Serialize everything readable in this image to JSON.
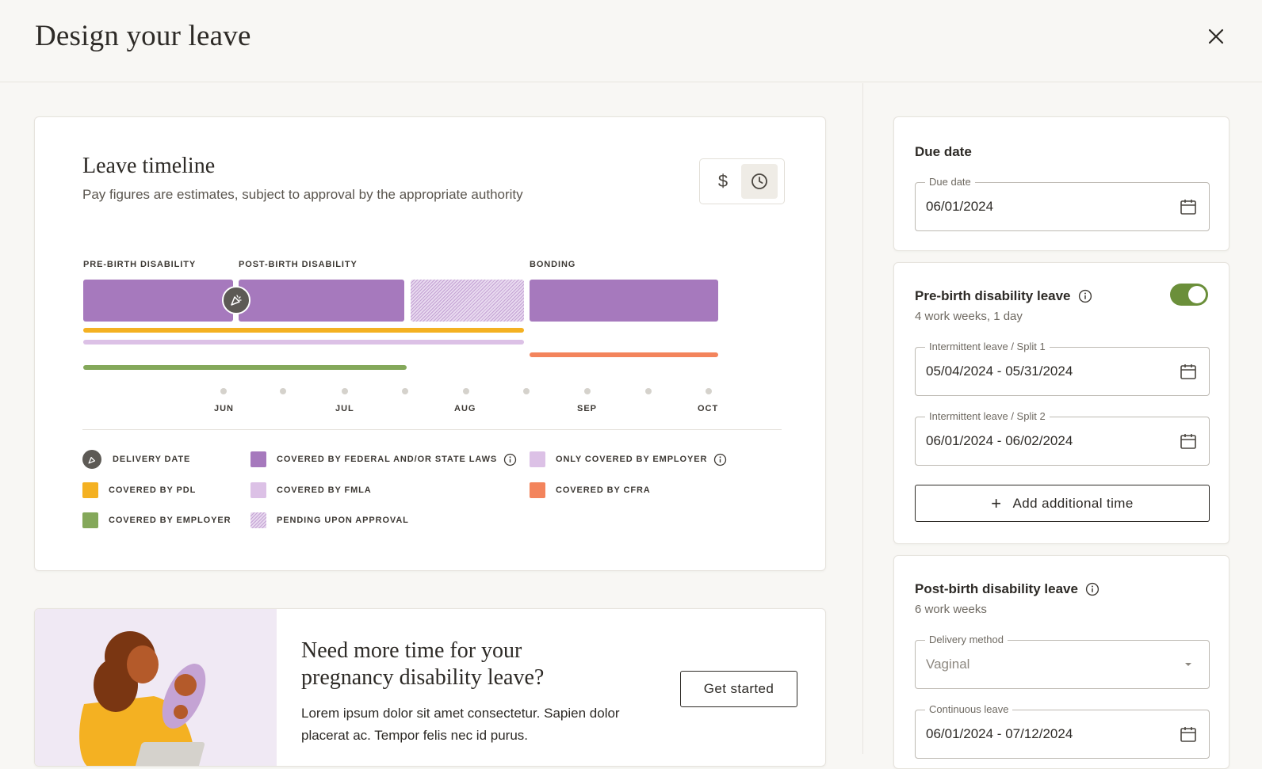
{
  "header": {
    "title": "Design your leave",
    "close_icon": "close-icon"
  },
  "timeline": {
    "title": "Leave timeline",
    "subtitle": "Pay figures are estimates, subject to approval by the appropriate authority",
    "view_toggle": {
      "pay_symbol": "$",
      "time_icon": "clock-icon",
      "active": "time"
    },
    "phases": [
      {
        "label": "PRE-BIRTH DISABILITY"
      },
      {
        "label": "POST-BIRTH DISABILITY"
      },
      {
        "label": "BONDING"
      }
    ],
    "months": [
      "JUN",
      "JUL",
      "AUG",
      "SEP",
      "OCT"
    ],
    "legend": [
      {
        "label": "DELIVERY DATE",
        "icon": "delivery-icon"
      },
      {
        "label": "COVERED BY FEDERAL AND/OR STATE LAWS",
        "color": "#a679bd",
        "info": true
      },
      {
        "label": "ONLY COVERED BY EMPLOYER",
        "color": "#dcc1e6",
        "info": true
      },
      {
        "label": "COVERED BY PDL",
        "color": "#f4b122"
      },
      {
        "label": "COVERED BY FMLA",
        "color": "#dcc1e6"
      },
      {
        "label": "COVERED BY CFRA",
        "color": "#f3845c"
      },
      {
        "label": "COVERED BY EMPLOYER",
        "color": "#84a85a"
      },
      {
        "label": "PENDING UPON APPROVAL",
        "pattern": "hatched"
      }
    ],
    "colors": {
      "federal": "#a679bd",
      "pdl": "#f4b122",
      "fmla": "#dcc1e6",
      "cfra": "#f3845c",
      "employer": "#84a85a"
    }
  },
  "promo": {
    "title": "Need more time for your pregnancy disability leave?",
    "text": "Lorem ipsum dolor sit amet consectetur. Sapien dolor placerat ac. Tempor felis nec id purus.",
    "button_label": "Get started"
  },
  "due_date": {
    "title": "Due date",
    "field_label": "Due date",
    "value": "06/01/2024"
  },
  "pre_birth": {
    "title": "Pre-birth disability leave",
    "duration": "4 work weeks, 1 day",
    "enabled": true,
    "splits": [
      {
        "label": "Intermittent leave / Split 1",
        "value": "05/04/2024 - 05/31/2024"
      },
      {
        "label": "Intermittent leave / Split 2",
        "value": "06/01/2024 - 06/02/2024"
      }
    ],
    "add_button_label": "Add additional time"
  },
  "post_birth": {
    "title": "Post-birth disability leave",
    "duration": "6 work weeks",
    "delivery_method_label": "Delivery method",
    "delivery_method_value": "Vaginal",
    "continuous_label": "Continuous leave",
    "continuous_value": "06/01/2024 - 07/12/2024"
  }
}
